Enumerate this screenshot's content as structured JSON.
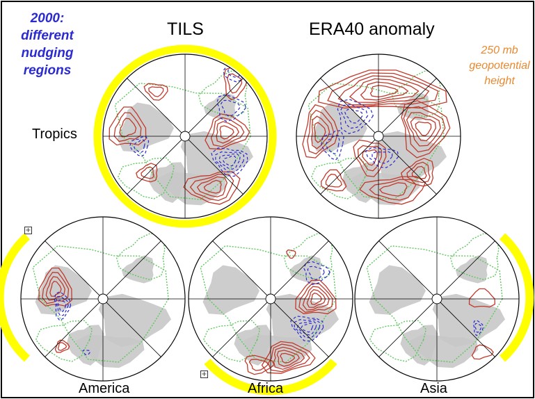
{
  "annotations": {
    "year_note": [
      "2000:",
      "different",
      "nudging",
      "regions"
    ],
    "field_note": [
      "250 mb",
      "geopotential",
      "height"
    ]
  },
  "titles": {
    "tils": "TILS",
    "era40": "ERA40 anomaly"
  },
  "panel_labels": {
    "tropics": "Tropics",
    "america": "America",
    "africa": "Africa",
    "asia": "Asia"
  },
  "colors": {
    "frame": "#000000",
    "highlight": "#ffff00",
    "positive_contour": "#c0392b",
    "negative_contour": "#2a2ad0",
    "zero_contour": "#5cc85c",
    "land": "#c8c8c8",
    "year_note": "#2a2ad0",
    "field_note": "#e8892f"
  },
  "icons": {
    "expand": "plus-square-icon"
  }
}
